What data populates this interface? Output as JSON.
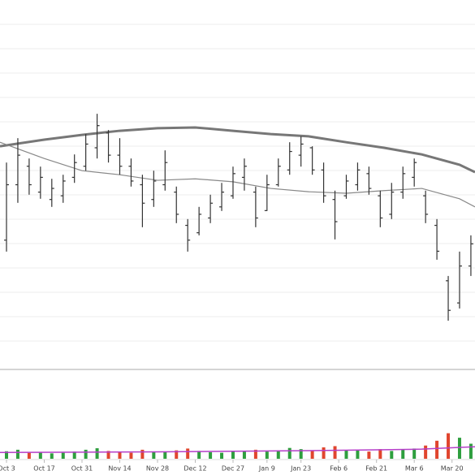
{
  "chart_data": {
    "type": "ohlc",
    "xlim": [
      -1.72,
      124.09
    ],
    "xticks": [
      {
        "value": 0,
        "label": "Oct 3"
      },
      {
        "value": 10,
        "label": "Oct 17"
      },
      {
        "value": 20,
        "label": "Oct 31"
      },
      {
        "value": 30,
        "label": "Nov 14"
      },
      {
        "value": 40,
        "label": "Nov 28"
      },
      {
        "value": 50,
        "label": "Dec 12"
      },
      {
        "value": 60,
        "label": "Dec 27"
      },
      {
        "value": 69,
        "label": "Jan 9"
      },
      {
        "value": 78,
        "label": "Jan 23"
      },
      {
        "value": 88,
        "label": "Feb 6"
      },
      {
        "value": 98,
        "label": "Feb 21"
      },
      {
        "value": 108,
        "label": "Mar 6"
      },
      {
        "value": 118,
        "label": "Mar 20"
      }
    ],
    "ylim": [
      0,
      100
    ],
    "x": [
      0,
      3,
      6,
      9,
      12,
      15,
      18,
      21,
      24,
      27,
      30,
      33,
      36,
      39,
      42,
      45,
      48,
      51,
      54,
      57,
      60,
      63,
      66,
      69,
      72,
      75,
      78,
      81,
      84,
      87,
      90,
      93,
      96,
      99,
      102,
      105,
      108,
      111,
      114,
      117,
      120,
      123
    ],
    "open": [
      35,
      50,
      55,
      48,
      46,
      47,
      52,
      55,
      60,
      64,
      58,
      55,
      50,
      46,
      50,
      48,
      39,
      37,
      41,
      44,
      47,
      52,
      48,
      43,
      50,
      54,
      58,
      60,
      54,
      46,
      47,
      50,
      53,
      47,
      42,
      48,
      52,
      47,
      39,
      24,
      18,
      28
    ],
    "high": [
      56.0,
      62.6,
      57.1,
      54.9,
      51.6,
      52.7,
      58.2,
      63.7,
      69.2,
      64.8,
      62.6,
      57.1,
      52.7,
      53.8,
      59.3,
      49.5,
      40.7,
      44.0,
      47.3,
      50.5,
      54.9,
      57.1,
      49.5,
      52.7,
      57.1,
      61.5,
      63.1,
      60.4,
      56.0,
      48.4,
      52.7,
      56.0,
      54.9,
      48.4,
      50.5,
      54.9,
      57.1,
      48.4,
      40.7,
      25.3,
      31.9,
      36.3
    ],
    "low": [
      31.9,
      45.1,
      47.3,
      46.2,
      44.0,
      45.1,
      50.5,
      53.8,
      57.1,
      56.0,
      52.7,
      49.5,
      38.5,
      44.0,
      48.4,
      39.6,
      31.9,
      36.3,
      39.6,
      42.9,
      46.2,
      48.4,
      38.5,
      42.9,
      49.5,
      52.7,
      54.9,
      52.7,
      45.1,
      35.2,
      46.2,
      48.4,
      47.3,
      38.5,
      40.7,
      46.2,
      49.5,
      39.6,
      29.7,
      13.2,
      16.5,
      25.3
    ],
    "close": [
      50,
      58,
      50,
      52,
      49,
      51,
      56,
      61,
      66,
      58,
      55,
      51,
      45,
      51,
      56,
      42,
      35,
      42,
      45,
      48,
      53,
      55,
      41,
      50,
      55,
      59,
      61,
      54,
      47,
      40,
      51,
      54,
      49,
      41,
      48,
      53,
      56,
      42,
      32,
      16,
      28,
      34
    ],
    "bar_color": "#333333",
    "moving_averages": [
      {
        "color": "#777777",
        "width": 3,
        "x": [
          -1.72,
          10,
          20,
          30,
          40,
          50,
          60,
          70,
          80,
          90,
          100,
          110,
          120,
          124.09
        ],
        "values": [
          60.4,
          62.2,
          63.5,
          64.6,
          65.3,
          65.5,
          64.6,
          63.7,
          63.1,
          61.5,
          60.0,
          58.2,
          55.4,
          53.4
        ]
      },
      {
        "color": "#888888",
        "width": 1.2,
        "x": [
          -1.72,
          10,
          20,
          30,
          40,
          50,
          60,
          70,
          80,
          90,
          100,
          110,
          120,
          124.09
        ],
        "values": [
          61.5,
          57.1,
          53.8,
          52.7,
          51.2,
          51.6,
          50.8,
          49.0,
          48.1,
          47.7,
          48.4,
          49.0,
          46.2,
          44.0
        ]
      }
    ],
    "volume": [
      2.5,
      3,
      2,
      2.2,
      1.8,
      2,
      2.4,
      3,
      3.5,
      2.6,
      2.2,
      2,
      3,
      2.4,
      2.2,
      2.8,
      3.4,
      2.6,
      2.2,
      2,
      2.4,
      2.6,
      3,
      2.4,
      2.8,
      3.6,
      3.2,
      2.6,
      3.8,
      4.2,
      2.8,
      3,
      2.4,
      3.2,
      2.6,
      3,
      3.4,
      4.4,
      6,
      8.5,
      7,
      5
    ],
    "volume_ylim": [
      0,
      10
    ],
    "up_color": "#2e9e3e",
    "down_color": "#e0452e",
    "volume_average": {
      "color": "#b53fc9",
      "x": [
        -1.72,
        20,
        40,
        60,
        80,
        100,
        110,
        120,
        124.09
      ],
      "values": [
        2.1,
        2.2,
        2.3,
        2.5,
        2.7,
        3.0,
        3.2,
        3.8,
        4.0
      ]
    }
  }
}
